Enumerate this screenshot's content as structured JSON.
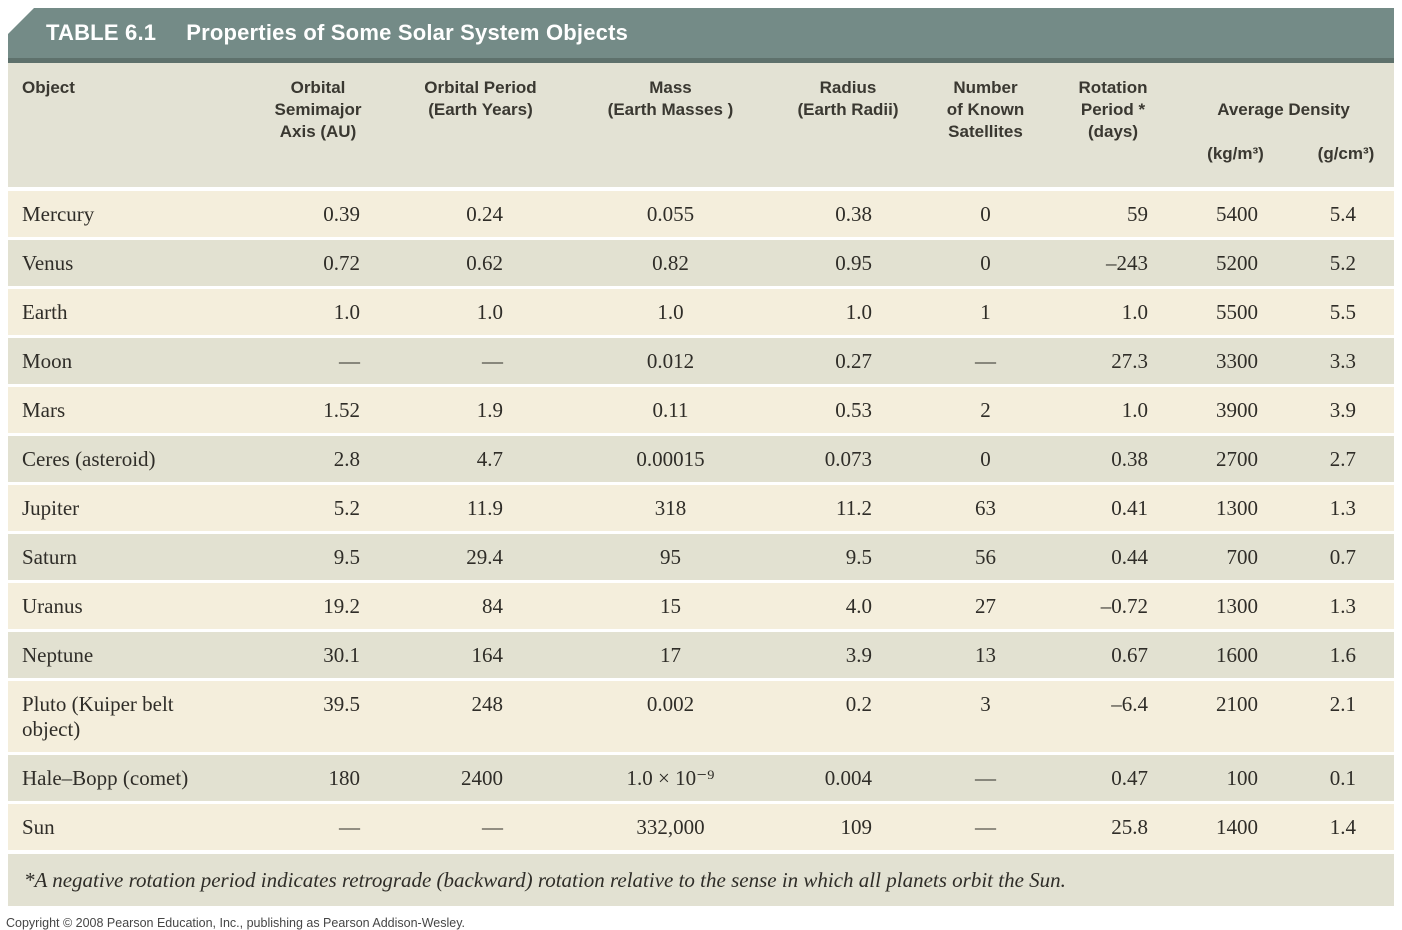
{
  "colors": {
    "title_bar_bg": "#748b87",
    "title_bar_edge": "#5e716c",
    "title_text": "#ffffff",
    "header_row_bg": "#e3e2d4",
    "row_light_bg": "#f4eedc",
    "row_dark_bg": "#e2e1d1",
    "footnote_bg": "#e2e1d2",
    "header_text": "#3a3831",
    "body_text": "#2f2d28",
    "copyright_text": "#464646"
  },
  "title_bar": {
    "table_number": "TABLE 6.1",
    "table_title": "Properties of Some Solar System Objects"
  },
  "table": {
    "headers": {
      "object": "Object",
      "semimajor": "Orbital\nSemimajor\nAxis (AU)",
      "period": "Orbital Period\n(Earth Years)",
      "mass": "Mass\n(Earth Masses )",
      "radius": "Radius\n(Earth Radii)",
      "satellites": "Number\nof Known\nSatellites",
      "rotation": "Rotation\nPeriod *\n(days)",
      "density_group": "Average Density",
      "density_kg": "(kg/m³)",
      "density_g": "(g/cm³)"
    },
    "rows": [
      {
        "object": "Mercury",
        "semimajor": "0.39",
        "period": "0.24",
        "mass": "0.055",
        "radius": "0.38",
        "satellites": "0",
        "rotation": "59",
        "density_kg": "5400",
        "density_g": "5.4"
      },
      {
        "object": "Venus",
        "semimajor": "0.72",
        "period": "0.62",
        "mass": "0.82",
        "radius": "0.95",
        "satellites": "0",
        "rotation": "–243",
        "density_kg": "5200",
        "density_g": "5.2"
      },
      {
        "object": "Earth",
        "semimajor": "1.0",
        "period": "1.0",
        "mass": "1.0",
        "radius": "1.0",
        "satellites": "1",
        "rotation": "1.0",
        "density_kg": "5500",
        "density_g": "5.5"
      },
      {
        "object": "Moon",
        "semimajor": "—",
        "period": "—",
        "mass": "0.012",
        "radius": "0.27",
        "satellites": "—",
        "rotation": "27.3",
        "density_kg": "3300",
        "density_g": "3.3"
      },
      {
        "object": "Mars",
        "semimajor": "1.52",
        "period": "1.9",
        "mass": "0.11",
        "radius": "0.53",
        "satellites": "2",
        "rotation": "1.0",
        "density_kg": "3900",
        "density_g": "3.9"
      },
      {
        "object": "Ceres (asteroid)",
        "semimajor": "2.8",
        "period": "4.7",
        "mass": "0.00015",
        "radius": "0.073",
        "satellites": "0",
        "rotation": "0.38",
        "density_kg": "2700",
        "density_g": "2.7"
      },
      {
        "object": "Jupiter",
        "semimajor": "5.2",
        "period": "11.9",
        "mass": "318",
        "radius": "11.2",
        "satellites": "63",
        "rotation": "0.41",
        "density_kg": "1300",
        "density_g": "1.3"
      },
      {
        "object": "Saturn",
        "semimajor": "9.5",
        "period": "29.4",
        "mass": "95",
        "radius": "9.5",
        "satellites": "56",
        "rotation": "0.44",
        "density_kg": "700",
        "density_g": "0.7"
      },
      {
        "object": "Uranus",
        "semimajor": "19.2",
        "period": "84",
        "mass": "15",
        "radius": "4.0",
        "satellites": "27",
        "rotation": "–0.72",
        "density_kg": "1300",
        "density_g": "1.3"
      },
      {
        "object": "Neptune",
        "semimajor": "30.1",
        "period": "164",
        "mass": "17",
        "radius": "3.9",
        "satellites": "13",
        "rotation": "0.67",
        "density_kg": "1600",
        "density_g": "1.6"
      },
      {
        "object": "Pluto (Kuiper belt object)",
        "semimajor": "39.5",
        "period": "248",
        "mass": "0.002",
        "radius": "0.2",
        "satellites": "3",
        "rotation": "–6.4",
        "density_kg": "2100",
        "density_g": "2.1"
      },
      {
        "object": "Hale–Bopp (comet)",
        "semimajor": "180",
        "period": "2400",
        "mass": "1.0 × 10⁻⁹",
        "radius": "0.004",
        "satellites": "—",
        "rotation": "0.47",
        "density_kg": "100",
        "density_g": "0.1"
      },
      {
        "object": "Sun",
        "semimajor": "—",
        "period": "—",
        "mass": "332,000",
        "radius": "109",
        "satellites": "—",
        "rotation": "25.8",
        "density_kg": "1400",
        "density_g": "1.4"
      }
    ]
  },
  "footnote": "*A negative rotation period indicates retrograde (backward) rotation relative to the sense in which all planets orbit the Sun.",
  "copyright": "Copyright © 2008 Pearson Education, Inc., publishing as Pearson Addison-Wesley."
}
